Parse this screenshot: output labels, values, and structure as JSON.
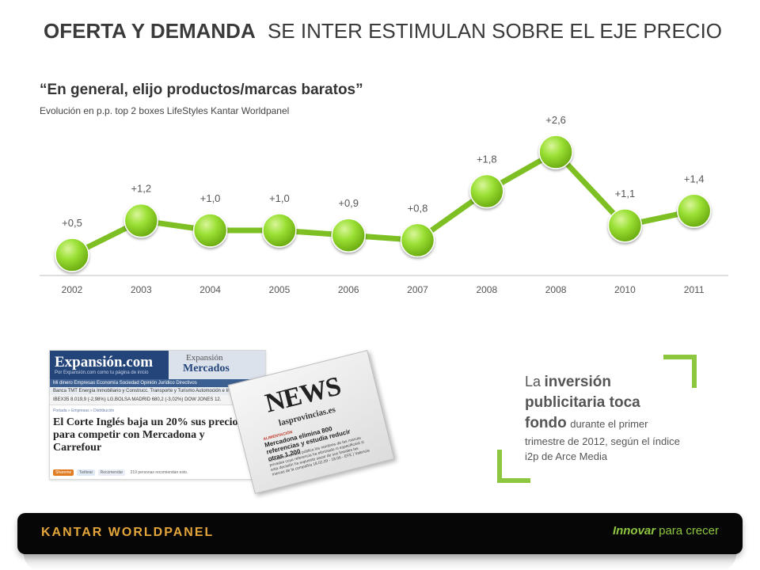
{
  "header": {
    "title_strong": "OFERTA Y DEMANDA",
    "title_rest": "SE INTER ESTIMULAN SOBRE EL EJE PRECIO"
  },
  "quote": "“En general, elijo productos/marcas baratos”",
  "subtitle": "Evolución en p.p. top 2 boxes LifeStyles Kantar Worldpanel",
  "chart_data": {
    "type": "line",
    "categories": [
      "2002",
      "2003",
      "2004",
      "2005",
      "2006",
      "2007",
      "2008",
      "2008",
      "2010",
      "2011"
    ],
    "values": [
      0.5,
      1.2,
      1.0,
      1.0,
      0.9,
      0.8,
      1.8,
      2.6,
      1.1,
      1.4
    ],
    "labels": [
      "+0,5",
      "+1,2",
      "+1,0",
      "+1,0",
      "+0,9",
      "+0,8",
      "+1,8",
      "+2,6",
      "+1,1",
      "+1,4"
    ],
    "ylim": [
      0,
      3
    ],
    "line_color": "#7ec023",
    "marker_color": "#8fd82c",
    "grid": false
  },
  "clipping": {
    "expansion": {
      "logo": "Expansión.com",
      "logo_tag": "Por Expansión.com como tu página de inicio",
      "section_sub": "Expansión",
      "section_main": "Mercados",
      "nav": "Mi dinero  Empresas  Economía  Sociedad  Opinión  Jurídico  Directivos",
      "nav2": "Banca  TMT  Energía  Inmobiliario y Construcc.  Transporte y Turismo  Automoción e Ind",
      "ticker": "IBEX35 8.019,9 (-2,98%)   LG.BOLSA MADRID 680,2 (-3,02%)   DOW JONES 12.",
      "crumb": "Portada » Empresas » Distribución",
      "headline": "El Corte Inglés baja un 20% sus precios para competir con Mercadona y Carrefour",
      "share_1": "Shareme",
      "share_2": "Twittear",
      "share_3": "Recomendar",
      "share_4": "219 personas recomiendan esto."
    },
    "news": {
      "title": "NEWS",
      "site": "lasprovincias.es",
      "category": "ALIMENTACIÓN",
      "headline": "Mercadona elimina 800 referencias y estudia reducir otras 1.200",
      "body": "La cadena no hará público los nombres de las marcas privadas cuya referencia ha eliminado ni especificará si esta decisión ha supuesto sacar de sus lineales las marcas de la compañía 18.02.09 - 18.06 - EFE | Valencia"
    }
  },
  "callout": {
    "la": "La",
    "bold_1": "inversión publicitaria toca fondo",
    "rest": "durante el primer trimestre de 2012, según el índice i2p de Arce Media"
  },
  "footer": {
    "brand": "KANTAR WORLDPANEL",
    "slogan_1": "Innovar",
    "slogan_2": "para crecer"
  }
}
